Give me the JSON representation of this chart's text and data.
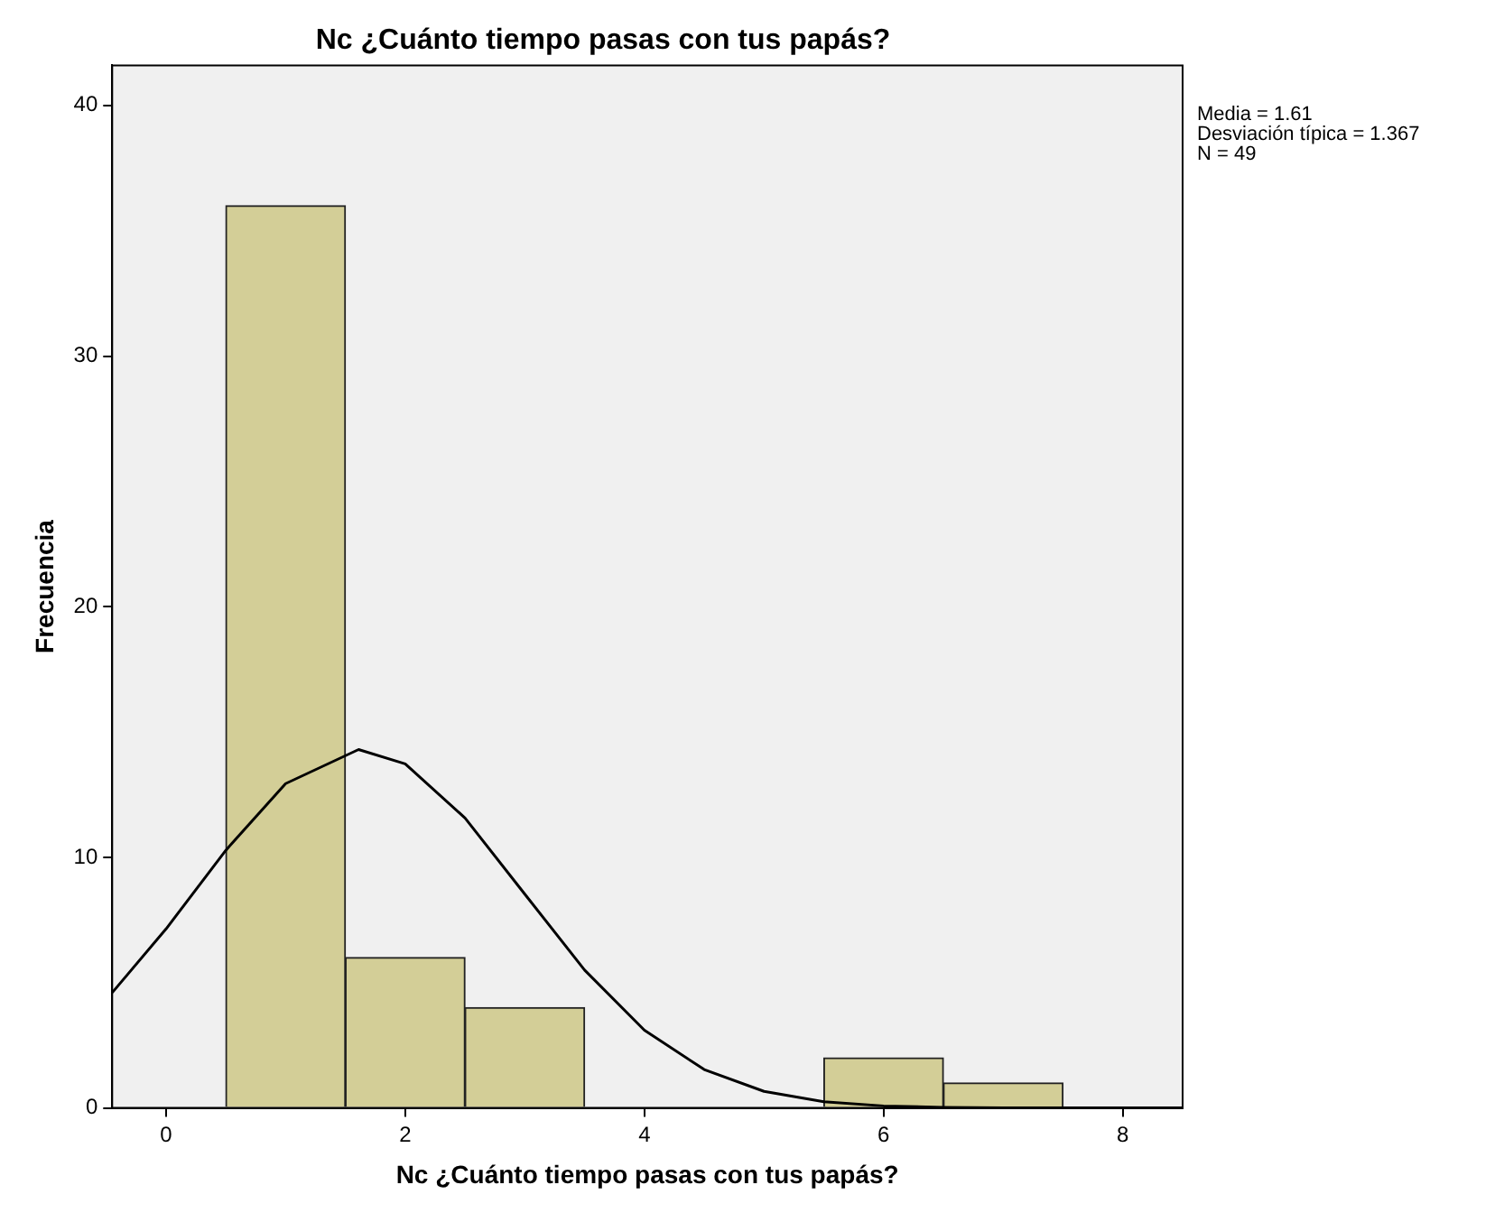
{
  "chart_data": {
    "type": "histogram",
    "title": "Nc ¿Cuánto tiempo pasas con tus papás?",
    "xlabel": "Nc ¿Cuánto tiempo pasas con tus papás?",
    "ylabel": "Frecuencia",
    "bins": [
      0.5,
      1.5,
      2.5,
      3.5,
      4.5,
      5.5,
      6.5,
      7.5
    ],
    "values": [
      36,
      6,
      4,
      0,
      0,
      2,
      1
    ],
    "color": "#d3ce97",
    "series": [
      {
        "type": "line",
        "color": "#000000",
        "x": [
          -0.45,
          0,
          0.5,
          1,
          1.61,
          2,
          2.5,
          3,
          3.5,
          4,
          4.5,
          5,
          5.5,
          6,
          6.5,
          7,
          8.5
        ],
        "values": [
          4.6,
          7.14,
          10.28,
          12.94,
          14.3,
          13.73,
          11.57,
          8.53,
          5.5,
          3.1,
          1.53,
          0.66,
          0.25,
          0.08,
          0.02,
          0,
          0
        ]
      }
    ],
    "xlim": [
      -0.45,
      8.5
    ],
    "xticks": [
      0,
      2,
      4,
      6,
      8
    ],
    "ylim": [
      0,
      41.6
    ],
    "yticks": [
      0,
      10,
      20,
      30,
      40
    ],
    "grid": false,
    "legend": false,
    "annotations": [
      "Media = 1.61",
      "Desviación típica = 1.367",
      "N = 49"
    ]
  }
}
